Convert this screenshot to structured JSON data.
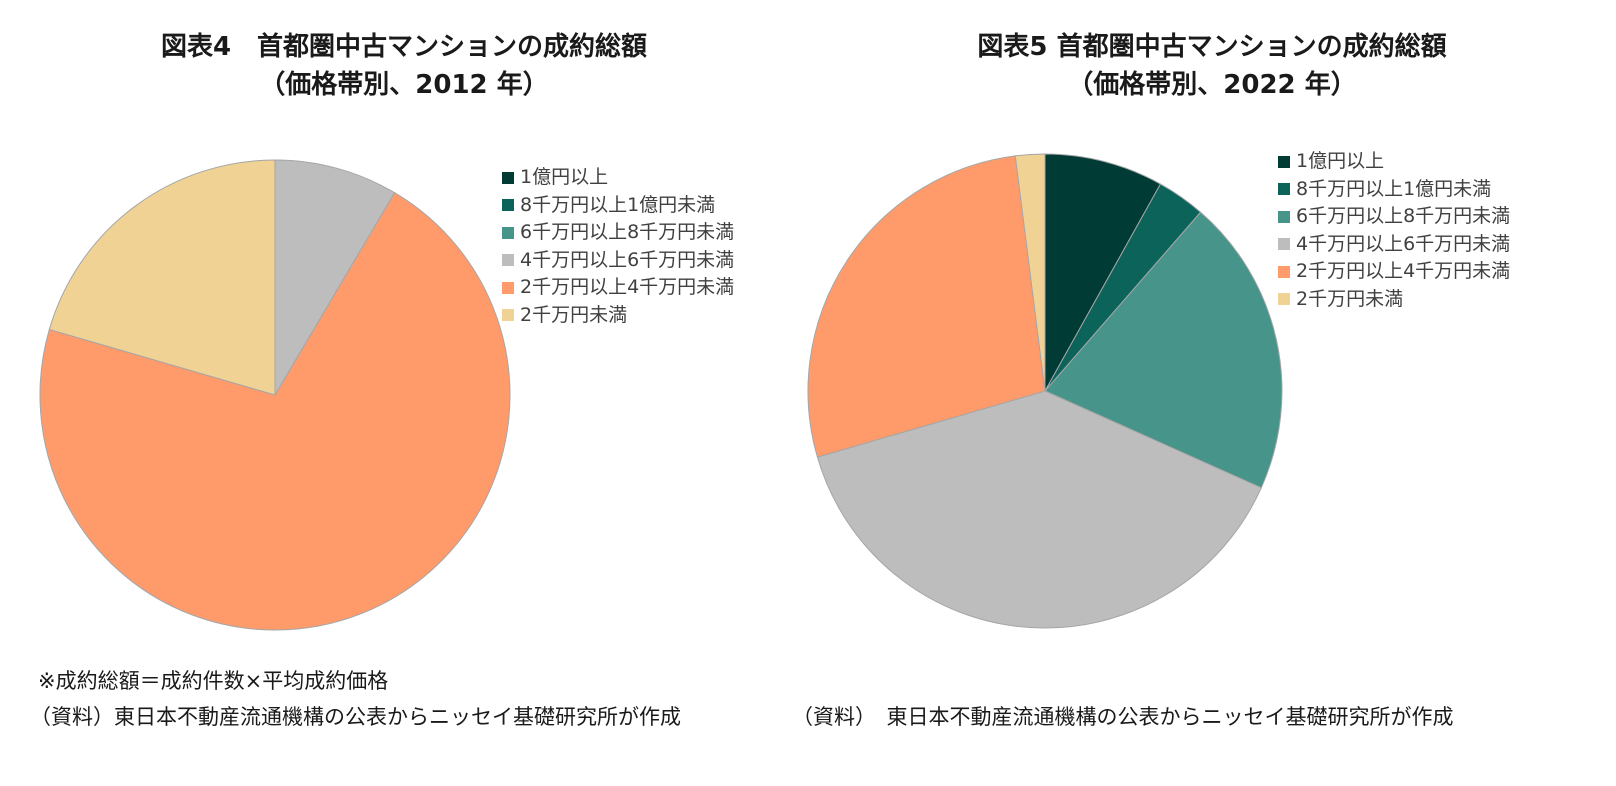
{
  "chart_data": [
    {
      "type": "pie",
      "title": "図表4　首都圏中古マンションの成約総額",
      "subtitle": "（価格帯別、2012 年）",
      "categories": [
        "1億円以上",
        "8千万円以上1億円未満",
        "6千万円以上8千万円未満",
        "4千万円以上6千万円未満",
        "2千万円以上4千万円未満",
        "2千万円未満"
      ],
      "values": [
        0,
        0,
        0,
        8.5,
        71.0,
        20.5
      ],
      "colors": [
        "#003b35",
        "#0b6359",
        "#46948a",
        "#bdbdbd",
        "#ff9b6a",
        "#f0d394"
      ],
      "legend_position": "right",
      "notes": [
        "※成約総額＝成約件数×平均成約価格",
        "（資料）東日本不動産流通機構の公表からニッセイ基礎研究所が作成"
      ]
    },
    {
      "type": "pie",
      "title": "図表5  首都圏中古マンションの成約総額",
      "subtitle": "（価格帯別、2022 年）",
      "categories": [
        "1億円以上",
        "8千万円以上1億円未満",
        "6千万円以上8千万円未満",
        "4千万円以上6千万円未満",
        "2千万円以上4千万円未満",
        "2千万円未満"
      ],
      "values": [
        8.1,
        3.3,
        20.3,
        38.8,
        27.5,
        2.0
      ],
      "colors": [
        "#003b35",
        "#0b6359",
        "#46948a",
        "#bdbdbd",
        "#ff9b6a",
        "#f0d394"
      ],
      "legend_position": "right",
      "notes": [
        "（資料）　東日本不動産流通機構の公表からニッセイ基礎研究所が作成"
      ]
    }
  ]
}
